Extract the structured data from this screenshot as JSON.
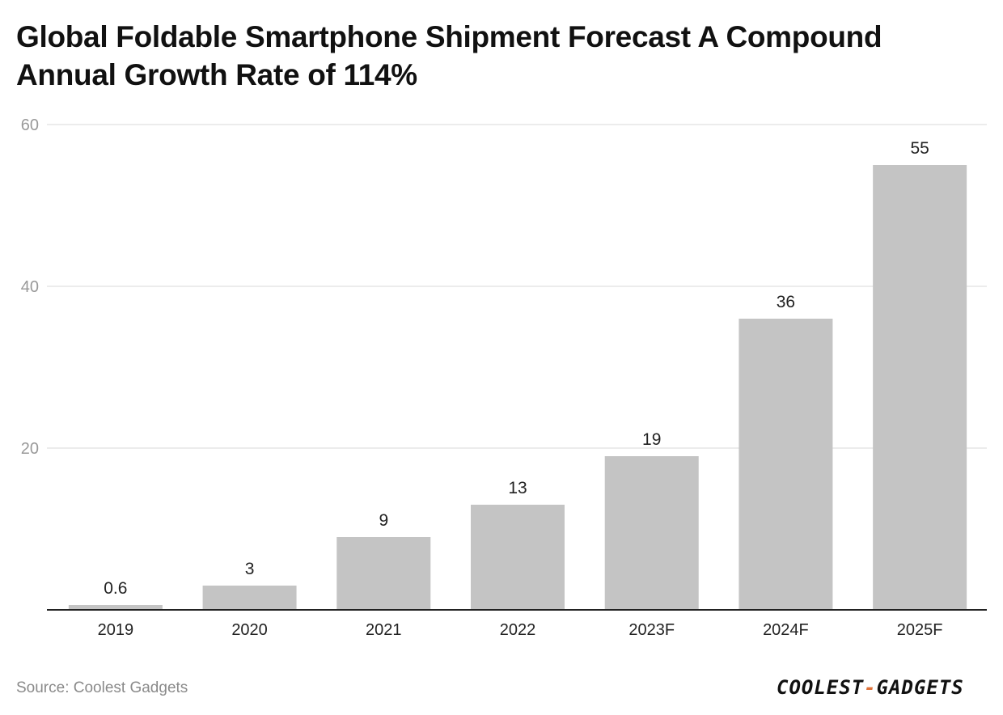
{
  "title": "Global Foldable Smartphone Shipment Forecast A Compound Annual Growth Rate of 114%",
  "source": "Source: Coolest Gadgets",
  "logo": {
    "left": "COOLEST",
    "dash": "-",
    "right": "GADGETS",
    "accent_color": "#e0733a"
  },
  "chart_data": {
    "type": "bar",
    "title": "Global Foldable Smartphone Shipment Forecast A Compound Annual Growth Rate of 114%",
    "categories": [
      "2019",
      "2020",
      "2021",
      "2022",
      "2023F",
      "2024F",
      "2025F"
    ],
    "values": [
      0.6,
      3,
      9,
      13,
      19,
      36,
      55
    ],
    "data_labels": [
      "0.6",
      "3",
      "9",
      "13",
      "19",
      "36",
      "55"
    ],
    "xlabel": "",
    "ylabel": "",
    "ylim": [
      0,
      60
    ],
    "yticks": [
      "20",
      "40",
      "60"
    ],
    "ytick_values": [
      20,
      40,
      60
    ],
    "grid": true,
    "bar_color": "#c4c4c4"
  }
}
